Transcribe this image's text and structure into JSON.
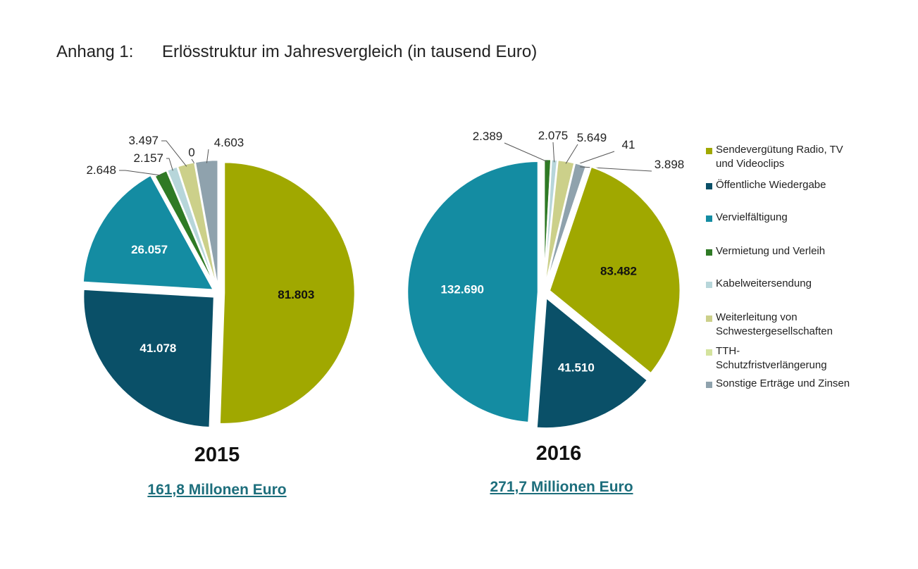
{
  "title": {
    "prefix": "Anhang 1:",
    "text": "Erlösstruktur im Jahresvergleich (in tausend Euro)"
  },
  "colors": [
    "#a0a800",
    "#0a5068",
    "#148ca2",
    "#2f7a25",
    "#b7d6da",
    "#ccd08a",
    "#d4e39d",
    "#8fa2ad"
  ],
  "legend": [
    "Sendevergütung Radio, TV\nund Videoclips",
    "Öffentliche Wiedergabe",
    "Vervielfältigung",
    "Vermietung und Verleih",
    "Kabelweitersendung",
    "Weiterleitung von\nSchwestergesellschaften",
    "TTH-\nSchutzfristverlängerung",
    "Sonstige Erträge und Zinsen"
  ],
  "chart_data": [
    {
      "type": "pie",
      "year": "2015",
      "total": "161,8 Millonen Euro",
      "categories": [
        "Sendevergütung Radio, TV und Videoclips",
        "Öffentliche Wiedergabe",
        "Vervielfältigung",
        "Vermietung und Verleih",
        "Kabelweitersendung",
        "Weiterleitung von Schwestergesellschaften",
        "TTH-Schutzfristverlängerung",
        "Sonstige Erträge und Zinsen"
      ],
      "values": [
        81803,
        41078,
        26057,
        2648,
        2157,
        3497,
        0,
        4603
      ],
      "labels": [
        "81.803",
        "41.078",
        "26.057",
        "2.648",
        "2.157",
        "3.497",
        "0",
        "4.603"
      ]
    },
    {
      "type": "pie",
      "year": "2016",
      "total": "271,7 Millionen Euro",
      "categories": [
        "Sendevergütung Radio, TV und Videoclips",
        "Öffentliche Wiedergabe",
        "Vervielfältigung",
        "Vermietung und Verleih",
        "Kabelweitersendung",
        "Weiterleitung von Schwestergesellschaften",
        "TTH-Schutzfristverlängerung",
        "Sonstige Erträge und Zinsen"
      ],
      "values": [
        83482,
        41510,
        132690,
        2389,
        2075,
        5649,
        41,
        3898
      ],
      "labels": [
        "83.482",
        "41.510",
        "132.690",
        "2.389",
        "2.075",
        "5.649",
        "41",
        "3.898"
      ]
    }
  ]
}
